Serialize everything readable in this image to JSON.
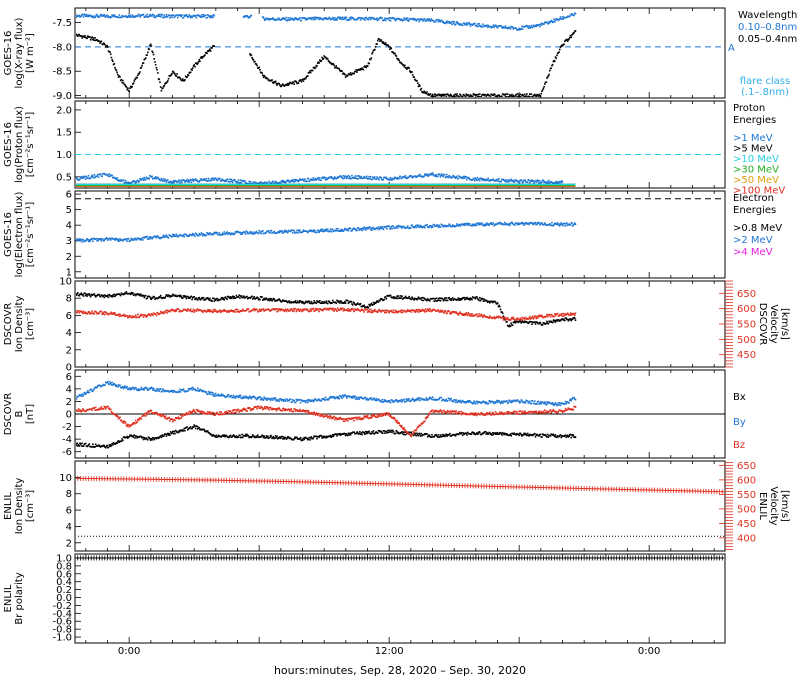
{
  "x_axis": {
    "label": "hours:minutes, Sep. 28, 2020 – Sep. 30, 2020",
    "range_hours": [
      -2.5,
      27.5
    ],
    "ticks": [
      {
        "h": 0,
        "label": "0:00"
      },
      {
        "h": 12,
        "label": "12:00"
      },
      {
        "h": 24,
        "label": "0:00"
      }
    ]
  },
  "colors": {
    "black": "#000000",
    "blue": "#1f77d4",
    "red": "#e03020",
    "green": "#20b020",
    "cyan": "#27d0e0",
    "orange": "#e0a010",
    "magenta": "#e020e0",
    "lightblue": "#2fb0f0"
  },
  "chart_data": [
    {
      "id": "xray",
      "type": "scatter",
      "ylabel": [
        "GOES-16",
        "log(X-ray flux)",
        "[W m⁻²]"
      ],
      "ylim": [
        -9.05,
        -7.2
      ],
      "yticks": [
        -7.5,
        -8.0,
        -8.5,
        -9.0
      ],
      "ytick_labels": [
        "-7.5",
        "-8.0",
        "-8.5",
        "-9.0"
      ],
      "threshold": {
        "value": -8.0,
        "label": "A",
        "color": "#1f77d4"
      },
      "legend": {
        "title": "Wavelength",
        "entries": [
          {
            "text": "0.10–0.8nm",
            "color": "#1f77d4"
          },
          {
            "text": "0.05–0.4nm",
            "color": "#000000"
          }
        ],
        "note": [
          "flare class",
          "(.1–.8nm)"
        ]
      },
      "series": [
        {
          "name": "0.10–0.8nm",
          "color": "#1f77d4",
          "style": "dots",
          "x": [
            -2.5,
            -1,
            0,
            1,
            2,
            3,
            3.9,
            5.3,
            5.6,
            6.2,
            7,
            8,
            9,
            10,
            11,
            12,
            13,
            14,
            15,
            16,
            17,
            18,
            19,
            19.9,
            20.6
          ],
          "y": [
            -7.36,
            -7.37,
            -7.36,
            -7.36,
            -7.37,
            -7.37,
            -7.37,
            -7.37,
            -7.38,
            -7.42,
            -7.43,
            -7.43,
            -7.42,
            -7.42,
            -7.42,
            -7.43,
            -7.44,
            -7.46,
            -7.51,
            -7.55,
            -7.59,
            -7.62,
            -7.55,
            -7.42,
            -7.33
          ],
          "gaps": [
            [
              3.95,
              5.25
            ],
            [
              5.65,
              6.15
            ]
          ]
        },
        {
          "name": "0.05–0.4nm",
          "color": "#000000",
          "style": "dots",
          "x": [
            -2.5,
            -2,
            -1.5,
            -1,
            -0.5,
            0,
            0.5,
            1,
            1.5,
            2,
            2.5,
            3,
            3.5,
            3.9,
            5.6,
            6.2,
            7,
            8,
            9,
            10,
            11,
            11.5,
            12,
            12.5,
            13,
            13.5,
            14,
            15,
            16,
            17,
            18,
            19,
            19.5,
            20,
            20.6
          ],
          "y": [
            -7.75,
            -7.8,
            -7.85,
            -8.0,
            -8.6,
            -8.9,
            -8.5,
            -7.95,
            -8.9,
            -8.5,
            -8.7,
            -8.4,
            -8.15,
            -8.0,
            -8.15,
            -8.6,
            -8.8,
            -8.7,
            -8.2,
            -8.6,
            -8.4,
            -7.85,
            -8.0,
            -8.3,
            -8.5,
            -8.9,
            -9.0,
            -9.0,
            -9.0,
            -9.0,
            -9.0,
            -9.0,
            -8.4,
            -7.95,
            -7.7
          ],
          "gaps": [
            [
              3.95,
              5.55
            ]
          ]
        }
      ]
    },
    {
      "id": "proton",
      "type": "scatter",
      "ylabel": [
        "GOES-16",
        "log(Proton flux)",
        "[cm⁻²s⁻¹sr⁻¹]"
      ],
      "ylim": [
        0.25,
        2.2
      ],
      "yticks": [
        0.5,
        1.0,
        1.5,
        2.0
      ],
      "ytick_labels": [
        "0.5",
        "1.0",
        "1.5",
        "2.0"
      ],
      "threshold": {
        "value": 1.0,
        "label": "",
        "color": "#27d0e0"
      },
      "legend": {
        "title": "Proton",
        "title2": "Energies",
        "entries": [
          {
            "text": ">1 MeV",
            "color": "#1f77d4"
          },
          {
            "text": ">5 MeV",
            "color": "#000000"
          },
          {
            "text": ">10 MeV",
            "color": "#27d0e0"
          },
          {
            "text": ">30 MeV",
            "color": "#20b020"
          },
          {
            "text": ">50 MeV",
            "color": "#e0a010"
          },
          {
            "text": ">100 MeV",
            "color": "#e03020"
          }
        ]
      },
      "series": [
        {
          "name": ">1 MeV",
          "color": "#1f77d4",
          "style": "dots",
          "x": [
            -2.5,
            -1,
            0,
            1,
            2,
            4,
            6,
            8,
            10,
            12,
            14,
            16,
            18,
            20
          ],
          "y": [
            0.45,
            0.55,
            0.35,
            0.5,
            0.38,
            0.45,
            0.35,
            0.42,
            0.5,
            0.45,
            0.55,
            0.45,
            0.4,
            0.38
          ]
        },
        {
          "name": ">5 MeV",
          "color": "#000000",
          "style": "band",
          "x": [
            -2.5,
            20.6
          ],
          "y": [
            0.32,
            0.32
          ]
        },
        {
          "name": ">10 MeV",
          "color": "#27d0e0",
          "style": "band",
          "x": [
            -2.5,
            20.6
          ],
          "y": [
            0.32,
            0.32
          ]
        },
        {
          "name": ">30 MeV",
          "color": "#20b020",
          "style": "band",
          "x": [
            -2.5,
            20.6
          ],
          "y": [
            0.29,
            0.29
          ]
        },
        {
          "name": ">50 MeV",
          "color": "#e0a010",
          "style": "band",
          "x": [
            -2.5,
            20.6
          ],
          "y": [
            0.27,
            0.27
          ]
        },
        {
          "name": ">100 MeV",
          "color": "#e03020",
          "style": "band",
          "x": [
            -2.5,
            20.6
          ],
          "y": [
            0.26,
            0.26
          ]
        }
      ]
    },
    {
      "id": "electron",
      "type": "line",
      "ylabel": [
        "GOES-16",
        "log(Electron flux)",
        "[cm⁻²s⁻¹sr⁻¹]"
      ],
      "ylim": [
        0.6,
        6.2
      ],
      "yticks": [
        1,
        2,
        3,
        4,
        5,
        6
      ],
      "ytick_labels": [
        "1",
        "2",
        "3",
        "4",
        "5",
        "6"
      ],
      "threshold": {
        "value": 5.7,
        "label": "",
        "color": "#000000"
      },
      "legend": {
        "title": "Electron",
        "title2": "Energies",
        "entries": [
          {
            "text": ">0.8 MeV",
            "color": "#000000"
          },
          {
            "text": ">2 MeV",
            "color": "#1f77d4"
          },
          {
            "text": ">4 MeV",
            "color": "#e020e0"
          }
        ]
      },
      "series": [
        {
          "name": ">2 MeV",
          "color": "#1f77d4",
          "style": "dots",
          "x": [
            -2.5,
            -1,
            0,
            1,
            2,
            4,
            6,
            8,
            10,
            12,
            14,
            16,
            18,
            20,
            20.6
          ],
          "y": [
            3.0,
            3.1,
            3.05,
            3.2,
            3.3,
            3.45,
            3.55,
            3.6,
            3.7,
            3.85,
            3.95,
            4.05,
            4.1,
            4.05,
            4.05
          ]
        }
      ]
    },
    {
      "id": "dscovr_density",
      "type": "scatter",
      "ylabel": [
        "DSCOVR",
        "Ion Density",
        "[cm⁻³]"
      ],
      "ylim": [
        0,
        10
      ],
      "yticks": [
        0,
        2,
        4,
        6,
        8,
        10
      ],
      "ytick_labels": [
        "0",
        "2",
        "4",
        "6",
        "8",
        "10"
      ],
      "ylabel_right": [
        "DSCOVR",
        "Velocity",
        "[km/s]"
      ],
      "ylim_right": [
        410,
        690
      ],
      "yticks_right": [
        450,
        500,
        550,
        600,
        650
      ],
      "ytick_labels_right": [
        "450",
        "500",
        "550",
        "600",
        "650"
      ],
      "series": [
        {
          "name": "density",
          "color": "#000000",
          "style": "dots",
          "x": [
            -2.5,
            -1,
            0,
            1,
            2,
            3,
            4,
            5,
            6,
            8,
            10,
            11,
            12,
            13,
            14,
            15,
            16,
            17,
            17.5,
            18,
            19,
            20,
            20.6
          ],
          "y": [
            8.5,
            8.2,
            8.6,
            8.0,
            8.3,
            8.0,
            7.8,
            8.2,
            8.0,
            7.5,
            7.6,
            7.0,
            8.2,
            8.0,
            7.8,
            7.9,
            8.0,
            7.4,
            4.8,
            5.3,
            5.0,
            5.5,
            5.6
          ]
        },
        {
          "name": "velocity",
          "color": "#e03020",
          "style": "dots",
          "axis": "right",
          "x": [
            -2.5,
            -1,
            0,
            1,
            2,
            4,
            6,
            8,
            10,
            12,
            14,
            15,
            16,
            17,
            18,
            19,
            20,
            20.6
          ],
          "y": [
            590,
            585,
            575,
            578,
            595,
            592,
            595,
            595,
            597,
            590,
            595,
            585,
            580,
            570,
            565,
            575,
            580,
            582
          ]
        }
      ]
    },
    {
      "id": "dscovr_b",
      "type": "scatter",
      "ylabel": [
        "DSCOVR",
        "B",
        "[nT]"
      ],
      "ylim": [
        -7,
        7
      ],
      "yticks": [
        -6,
        -4,
        -2,
        0,
        2,
        4,
        6
      ],
      "ytick_labels": [
        "-6",
        "-4",
        "-2",
        "0",
        "2",
        "4",
        "6"
      ],
      "zero_line": true,
      "legend": {
        "entries": [
          {
            "text": "Bx",
            "color": "#000000"
          },
          {
            "text": "By",
            "color": "#1f77d4"
          },
          {
            "text": "Bz",
            "color": "#e03020"
          }
        ]
      },
      "series": [
        {
          "name": "Bx",
          "color": "#000000",
          "style": "dots",
          "x": [
            -2.5,
            -1,
            0,
            1,
            2,
            3,
            4,
            6,
            8,
            10,
            12,
            14,
            16,
            18,
            20,
            20.6
          ],
          "y": [
            -4.8,
            -5.2,
            -3.5,
            -4.0,
            -3.0,
            -2.0,
            -3.5,
            -3.5,
            -4.0,
            -3.2,
            -2.8,
            -3.5,
            -3.0,
            -3.3,
            -3.5,
            -3.5
          ]
        },
        {
          "name": "By",
          "color": "#1f77d4",
          "style": "dots",
          "x": [
            -2.5,
            -1,
            0,
            1,
            2,
            3,
            4,
            6,
            8,
            10,
            12,
            14,
            16,
            18,
            20,
            20.6
          ],
          "y": [
            2.5,
            5.0,
            4.0,
            4.0,
            3.5,
            4.0,
            3.0,
            2.5,
            2.0,
            2.8,
            2.0,
            2.5,
            1.8,
            2.0,
            1.5,
            2.5
          ]
        },
        {
          "name": "Bz",
          "color": "#e03020",
          "style": "dots",
          "x": [
            -2.5,
            -1,
            0,
            1,
            2,
            3,
            4,
            6,
            8,
            10,
            12,
            13,
            14,
            16,
            18,
            20,
            20.6
          ],
          "y": [
            0.5,
            1.0,
            -2.0,
            0.5,
            -1.0,
            0.5,
            0.0,
            1.0,
            0.5,
            -1.0,
            0.0,
            -3.5,
            0.5,
            0.0,
            0.2,
            0.5,
            1.0
          ]
        }
      ]
    },
    {
      "id": "enlil_density",
      "type": "line",
      "ylabel": [
        "ENLIL",
        "Ion Density",
        "[cm⁻³]"
      ],
      "ylim": [
        1,
        12
      ],
      "yticks": [
        2,
        4,
        6,
        8,
        10
      ],
      "ytick_labels": [
        "2",
        "4",
        "6",
        "8",
        "10"
      ],
      "ylabel_right": [
        "ENLIL",
        "Velocity",
        "[km/s]"
      ],
      "ylim_right": [
        355,
        665
      ],
      "yticks_right": [
        400,
        450,
        500,
        550,
        600,
        650
      ],
      "ytick_labels_right": [
        "400",
        "450",
        "500",
        "550",
        "600",
        "650"
      ],
      "series": [
        {
          "name": "density",
          "color": "#000000",
          "style": "dotted",
          "x": [
            -2.5,
            27.5
          ],
          "y": [
            2.8,
            2.8
          ]
        },
        {
          "name": "velocity",
          "color": "#e03020",
          "style": "crosses",
          "axis": "right",
          "x": [
            -2.5,
            0,
            4,
            8,
            12,
            16,
            20,
            24,
            27.5
          ],
          "y": [
            605,
            603,
            599,
            593,
            586,
            579,
            572,
            565,
            559
          ]
        }
      ]
    },
    {
      "id": "enlil_polarity",
      "type": "line",
      "ylabel": [
        "ENLIL",
        "Br polarity"
      ],
      "ylim": [
        -1.15,
        1.1
      ],
      "yticks": [
        -1.0,
        -0.8,
        -0.6,
        -0.4,
        -0.2,
        0.0,
        0.2,
        0.4,
        0.6,
        0.8,
        1.0
      ],
      "ytick_labels": [
        "-1.0",
        "-0.8",
        "-0.6",
        "-0.4",
        "-0.2",
        "0.0",
        "0.2",
        "0.4",
        "0.6",
        "0.8",
        "1.0"
      ],
      "series": [
        {
          "name": "polarity",
          "color": "#000000",
          "style": "crosses",
          "x": [
            -2.5,
            27.5
          ],
          "y": [
            1.0,
            1.0
          ]
        }
      ]
    }
  ]
}
